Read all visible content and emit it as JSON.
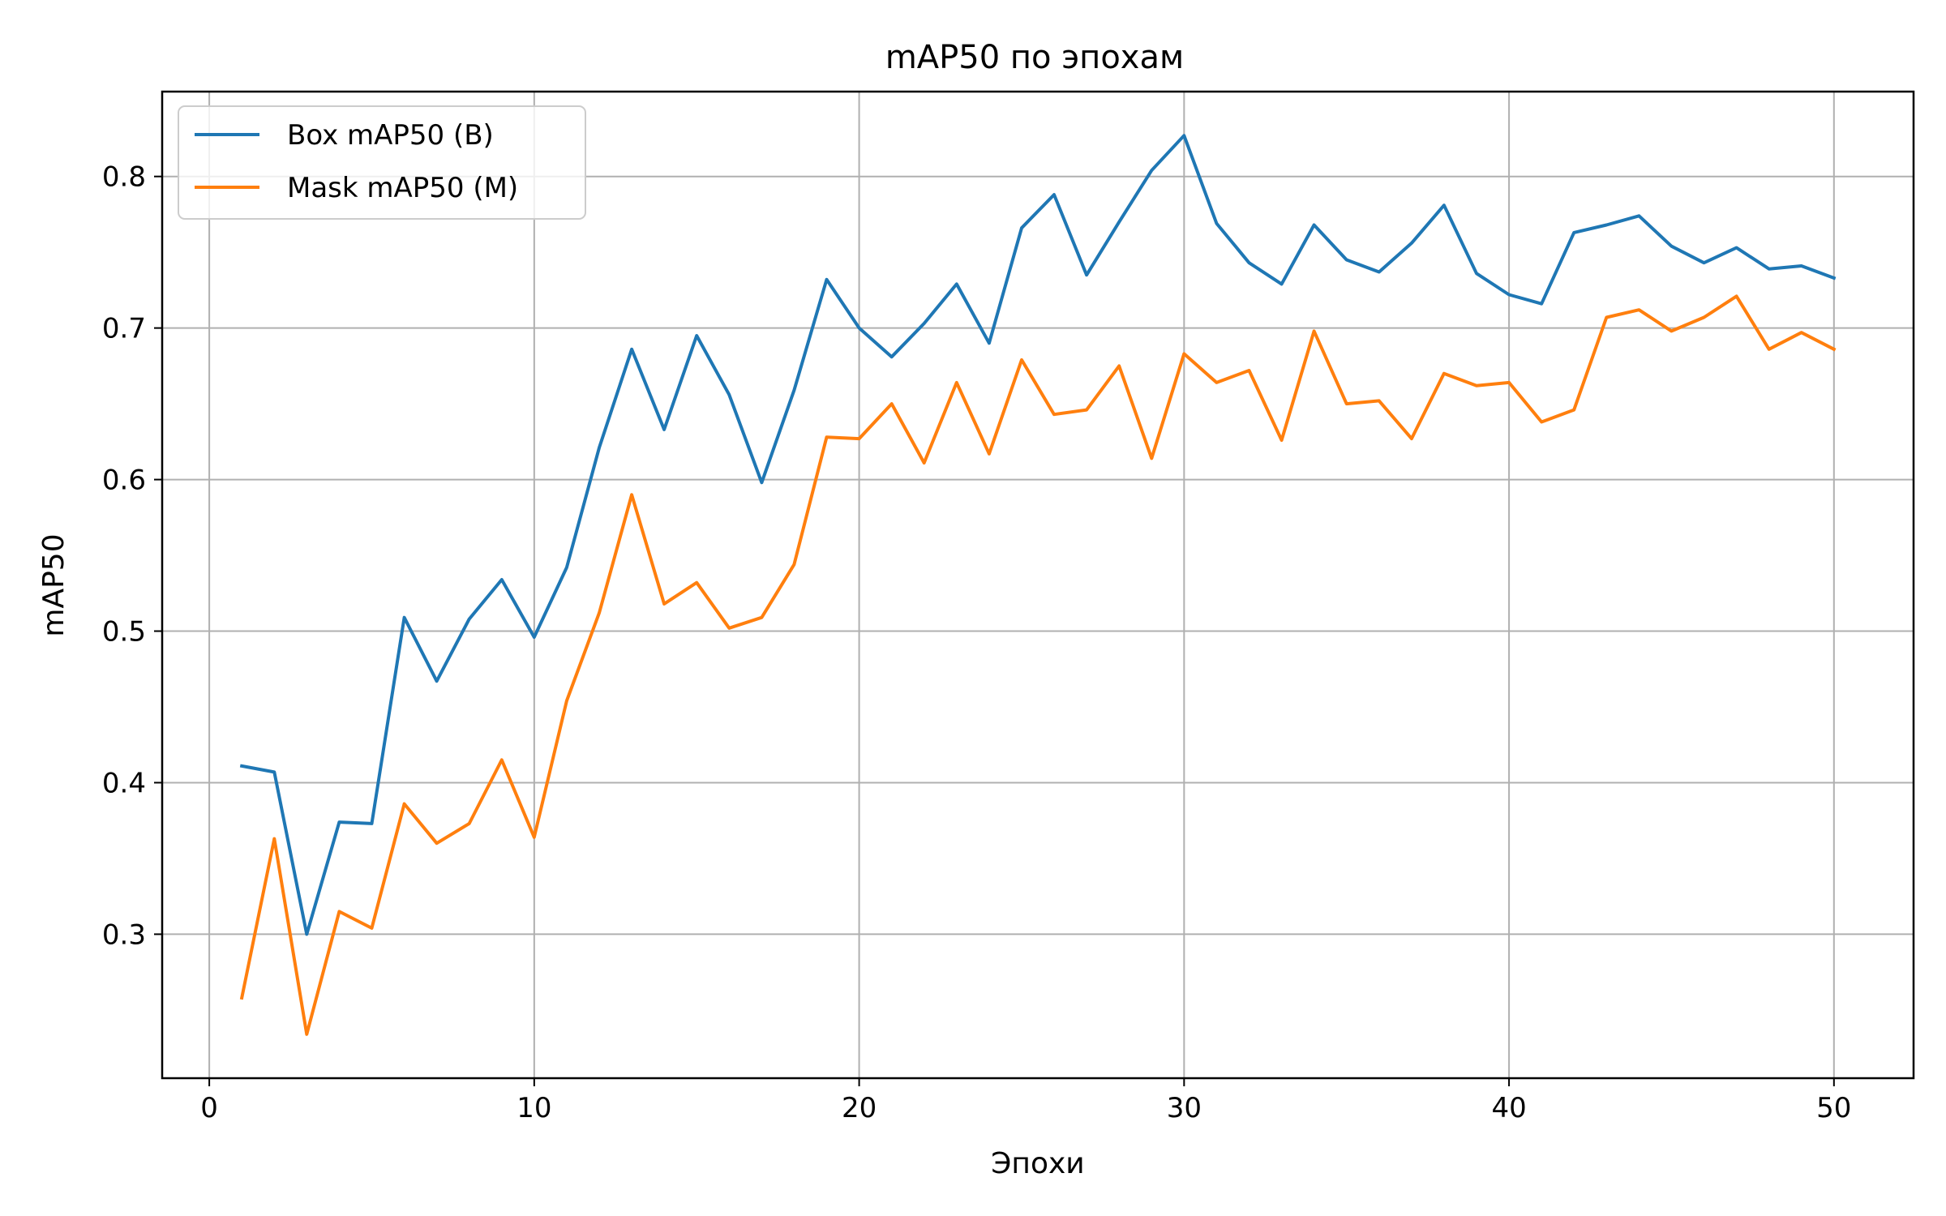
{
  "chart_data": {
    "type": "line",
    "title": "mAP50 по эпохам",
    "xlabel": "Эпохи",
    "ylabel": "mAP50",
    "xlim": [
      -1.45,
      52.45
    ],
    "ylim": [
      0.205,
      0.856
    ],
    "xticks": [
      0,
      10,
      20,
      30,
      40,
      50
    ],
    "yticks": [
      0.3,
      0.4,
      0.5,
      0.6,
      0.7,
      0.8
    ],
    "grid": true,
    "legend_position": "top-left",
    "x": [
      1,
      2,
      3,
      4,
      5,
      6,
      7,
      8,
      9,
      10,
      11,
      12,
      13,
      14,
      15,
      16,
      17,
      18,
      19,
      20,
      21,
      22,
      23,
      24,
      25,
      26,
      27,
      28,
      29,
      30,
      31,
      32,
      33,
      34,
      35,
      36,
      37,
      38,
      39,
      40,
      41,
      42,
      43,
      44,
      45,
      46,
      47,
      48,
      49,
      50
    ],
    "series": [
      {
        "name": "Box mAP50 (B)",
        "color": "#1f77b4",
        "values": [
          0.411,
          0.407,
          0.3,
          0.374,
          0.373,
          0.509,
          0.467,
          0.508,
          0.534,
          0.496,
          0.542,
          0.621,
          0.686,
          0.633,
          0.695,
          0.656,
          0.598,
          0.659,
          0.732,
          0.7,
          0.681,
          0.703,
          0.729,
          0.69,
          0.766,
          0.788,
          0.735,
          0.77,
          0.804,
          0.827,
          0.769,
          0.743,
          0.729,
          0.768,
          0.745,
          0.737,
          0.756,
          0.781,
          0.736,
          0.722,
          0.716,
          0.763,
          0.768,
          0.774,
          0.754,
          0.743,
          0.753,
          0.739,
          0.741,
          0.733
        ]
      },
      {
        "name": "Mask mAP50 (M)",
        "color": "#ff7f0e",
        "values": [
          0.258,
          0.363,
          0.234,
          0.315,
          0.304,
          0.386,
          0.36,
          0.373,
          0.415,
          0.364,
          0.454,
          0.512,
          0.59,
          0.518,
          0.532,
          0.502,
          0.509,
          0.544,
          0.628,
          0.627,
          0.65,
          0.611,
          0.664,
          0.617,
          0.679,
          0.643,
          0.646,
          0.675,
          0.614,
          0.683,
          0.664,
          0.672,
          0.626,
          0.698,
          0.65,
          0.652,
          0.627,
          0.67,
          0.662,
          0.664,
          0.638,
          0.646,
          0.707,
          0.712,
          0.698,
          0.707,
          0.721,
          0.686,
          0.697,
          0.686
        ]
      }
    ]
  }
}
